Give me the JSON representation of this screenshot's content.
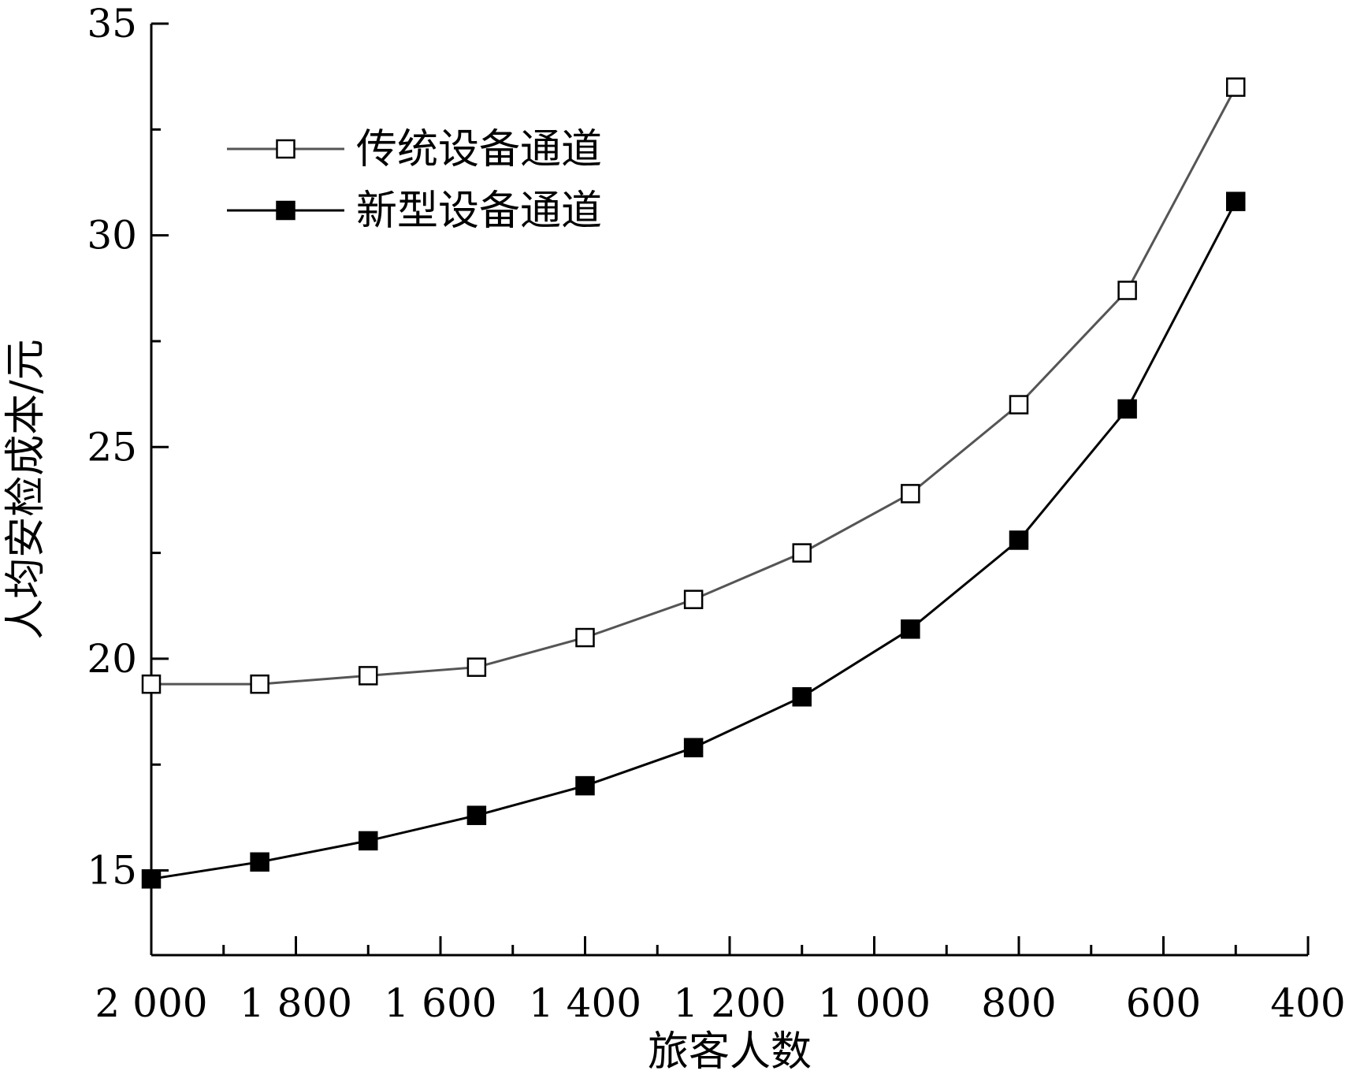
{
  "chart_data": {
    "type": "line",
    "xlabel": "旅客人数",
    "ylabel": "人均安检成本/元",
    "xlim": [
      2000,
      400
    ],
    "ylim": [
      13,
      35
    ],
    "x_reversed": true,
    "x_ticks": [
      2000,
      1800,
      1600,
      1400,
      1200,
      1000,
      800,
      600,
      400
    ],
    "x_tick_labels": [
      "2 000",
      "1 800",
      "1 600",
      "1 400",
      "1 200",
      "1 000",
      "800",
      "600",
      "400"
    ],
    "x_minor_ticks": [
      1900,
      1700,
      1500,
      1300,
      1100,
      900,
      700,
      500
    ],
    "y_ticks": [
      15,
      20,
      25,
      30,
      35
    ],
    "y_tick_labels": [
      "15",
      "20",
      "25",
      "30",
      "35"
    ],
    "y_minor_ticks": [
      17.5,
      22.5,
      27.5,
      32.5
    ],
    "grid": false,
    "legend_position": "top-left",
    "x": [
      2000,
      1850,
      1700,
      1550,
      1400,
      1250,
      1100,
      950,
      800,
      650,
      500
    ],
    "series": [
      {
        "name": "传统设备通道",
        "marker": "open-square",
        "color": "#555555",
        "values": [
          19.4,
          19.4,
          19.6,
          19.8,
          20.5,
          21.4,
          22.5,
          23.9,
          26.0,
          28.7,
          33.5
        ]
      },
      {
        "name": "新型设备通道",
        "marker": "filled-square",
        "color": "#000000",
        "values": [
          14.8,
          15.2,
          15.7,
          16.3,
          17.0,
          17.9,
          19.1,
          20.7,
          22.8,
          25.9,
          30.8
        ]
      }
    ]
  }
}
